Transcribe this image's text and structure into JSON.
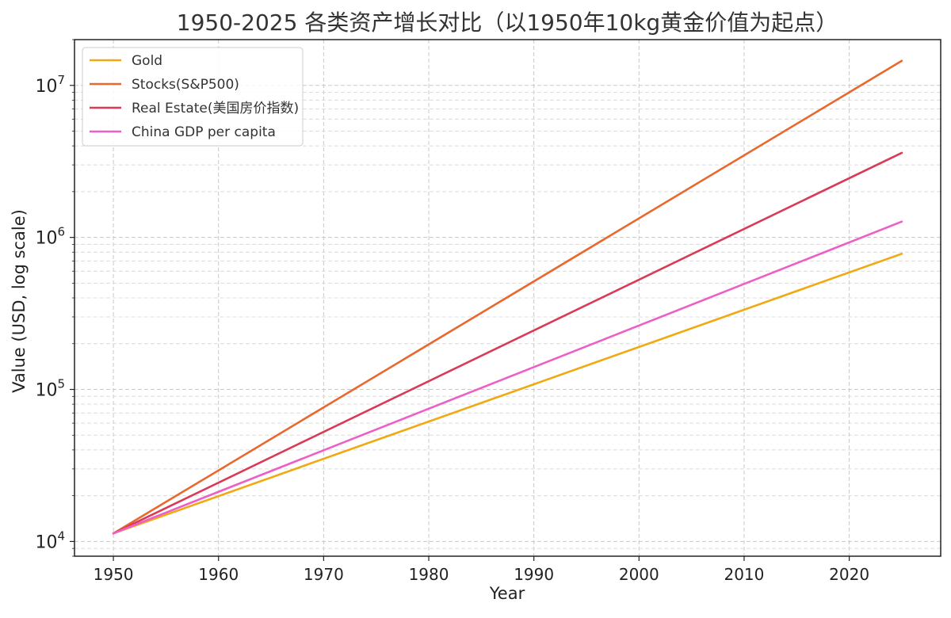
{
  "chart_data": {
    "type": "line",
    "title": "1950-2025 各类资产增长对比（以1950年10kg黄金价值为起点）",
    "xlabel": "Year",
    "ylabel": "Value (USD, log scale)",
    "xlim": [
      1946.3,
      2028.7
    ],
    "ylim": [
      8000,
      20000000
    ],
    "yscale": "log",
    "x_ticks": [
      1950,
      1960,
      1970,
      1980,
      1990,
      2000,
      2010,
      2020
    ],
    "y_ticks": [
      {
        "value": 10000,
        "base": "10",
        "exp": "4"
      },
      {
        "value": 100000,
        "base": "10",
        "exp": "5"
      },
      {
        "value": 1000000,
        "base": "10",
        "exp": "6"
      },
      {
        "value": 10000000,
        "base": "10",
        "exp": "7"
      }
    ],
    "grid": true,
    "legend_position": "top-left",
    "x": [
      1950,
      2025
    ],
    "series": [
      {
        "name": "Gold",
        "color": "#f0a911",
        "values": [
          11300,
          780000
        ]
      },
      {
        "name": "Stocks(S&P500)",
        "color": "#e8692d",
        "values": [
          11300,
          14500000
        ]
      },
      {
        "name": "Real Estate(美国房价指数)",
        "color": "#d93a56",
        "values": [
          11300,
          3600000
        ]
      },
      {
        "name": "China GDP per capita",
        "color": "#ec5fc6",
        "values": [
          11300,
          1270000
        ]
      }
    ]
  }
}
